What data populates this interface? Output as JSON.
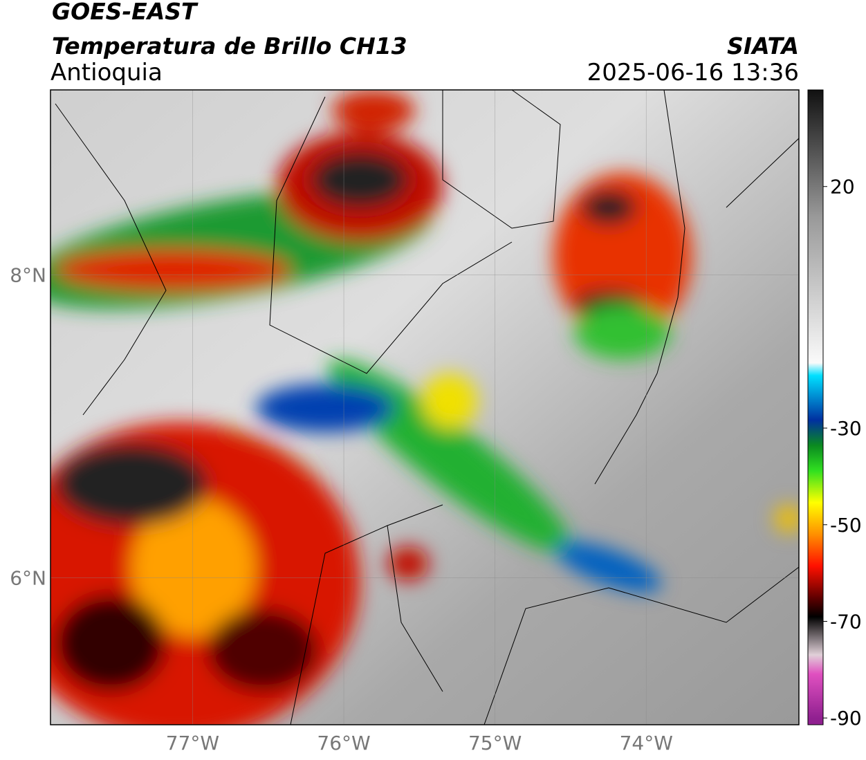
{
  "header": {
    "title": "GOES-EAST",
    "subtitle": "Temperatura de Brillo CH13",
    "region": "Antioquia",
    "source": "SIATA",
    "timestamp": "2025-06-16 13:36"
  },
  "map": {
    "xlim": [
      -77.94,
      -72.99
    ],
    "ylim": [
      5.03,
      9.22
    ],
    "xticks": [
      {
        "value": -77,
        "label": "77°W"
      },
      {
        "value": -76,
        "label": "76°W"
      },
      {
        "value": -75,
        "label": "75°W"
      },
      {
        "value": -74,
        "label": "74°W"
      }
    ],
    "yticks": [
      {
        "value": 8,
        "label": "8°N"
      },
      {
        "value": 6,
        "label": "6°N"
      }
    ]
  },
  "colorbar": {
    "lim": [
      -91.4,
      40
    ],
    "ticks": [
      20,
      -30,
      -50,
      -70,
      -90
    ]
  }
}
